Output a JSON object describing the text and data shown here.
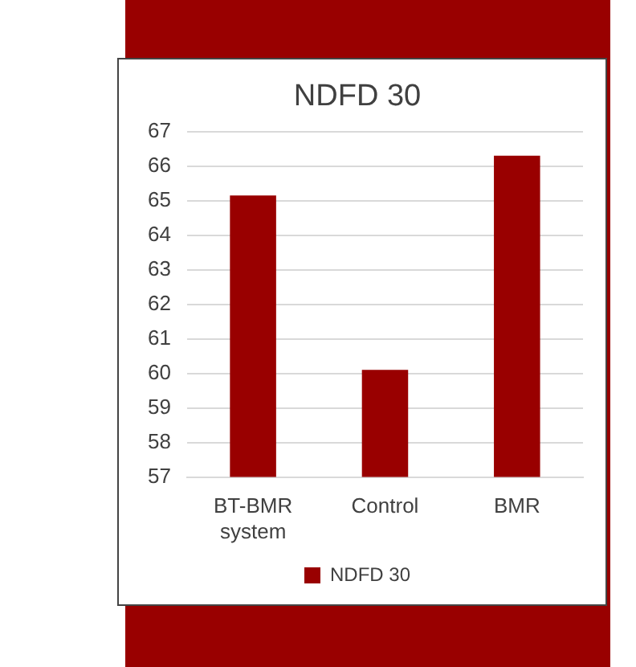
{
  "chart_data": {
    "type": "bar",
    "title": "NDFD 30",
    "categories": [
      "BT-BMR system",
      "Control",
      "BMR"
    ],
    "series": [
      {
        "name": "NDFD 30",
        "color": "#990000",
        "values": [
          65.15,
          60.1,
          66.3
        ]
      }
    ],
    "ylim": [
      57,
      67
    ],
    "yticks": [
      57,
      58,
      59,
      60,
      61,
      62,
      63,
      64,
      65,
      66,
      67
    ],
    "grid": "y",
    "legend": "bottom"
  }
}
